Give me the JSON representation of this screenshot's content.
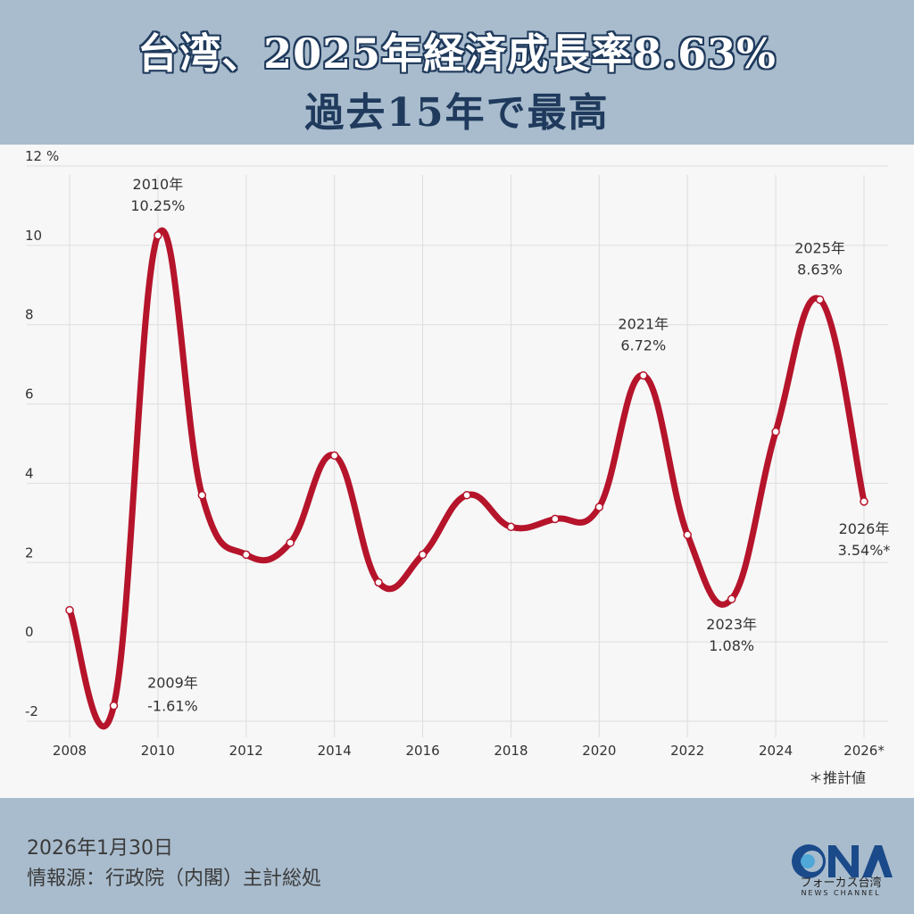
{
  "header": {
    "title_line1": "台湾、2025年経済成長率8.63%",
    "title_line2": "過去15年で最高"
  },
  "chart_data": {
    "type": "line",
    "x": [
      2008,
      2009,
      2010,
      2011,
      2012,
      2013,
      2014,
      2015,
      2016,
      2017,
      2018,
      2019,
      2020,
      2021,
      2022,
      2023,
      2024,
      2025,
      2026
    ],
    "values": [
      0.8,
      -1.61,
      10.25,
      3.7,
      2.2,
      2.5,
      4.7,
      1.5,
      2.2,
      3.7,
      2.9,
      3.1,
      3.4,
      6.72,
      2.7,
      1.08,
      5.3,
      8.63,
      3.54
    ],
    "ylim": [
      -2,
      12
    ],
    "yticks": [
      "-2",
      "0",
      "2",
      "4",
      "6",
      "8",
      "10",
      "12"
    ],
    "yunit": "%",
    "xticks": [
      "2008",
      "2010",
      "2012",
      "2014",
      "2016",
      "2018",
      "2020",
      "2022",
      "2024",
      "2026*"
    ],
    "grid": true,
    "line_color": "#b5142b",
    "annotations": [
      {
        "x": 2009,
        "year": "2009年",
        "value": "-1.61%",
        "place": "below-right"
      },
      {
        "x": 2010,
        "year": "2010年",
        "value": "10.25%",
        "place": "above"
      },
      {
        "x": 2021,
        "year": "2021年",
        "value": "6.72%",
        "place": "above"
      },
      {
        "x": 2023,
        "year": "2023年",
        "value": "1.08%",
        "place": "below"
      },
      {
        "x": 2025,
        "year": "2025年",
        "value": "8.63%",
        "place": "above"
      },
      {
        "x": 2026,
        "year": "2026年",
        "value": "3.54%*",
        "place": "below"
      }
    ],
    "note": "＊推計値"
  },
  "footer": {
    "date": "2026年1月30日",
    "source": "情報源：行政院（内閣）主計総処",
    "logo_text": "CNA",
    "logo_sub1": "フォーカス台湾",
    "logo_sub2": "NEWS CHANNEL"
  },
  "colors": {
    "background": "#a9bccd",
    "panel": "#f7f7f7",
    "title_dark": "#1f3a5c",
    "line": "#b5142b"
  }
}
